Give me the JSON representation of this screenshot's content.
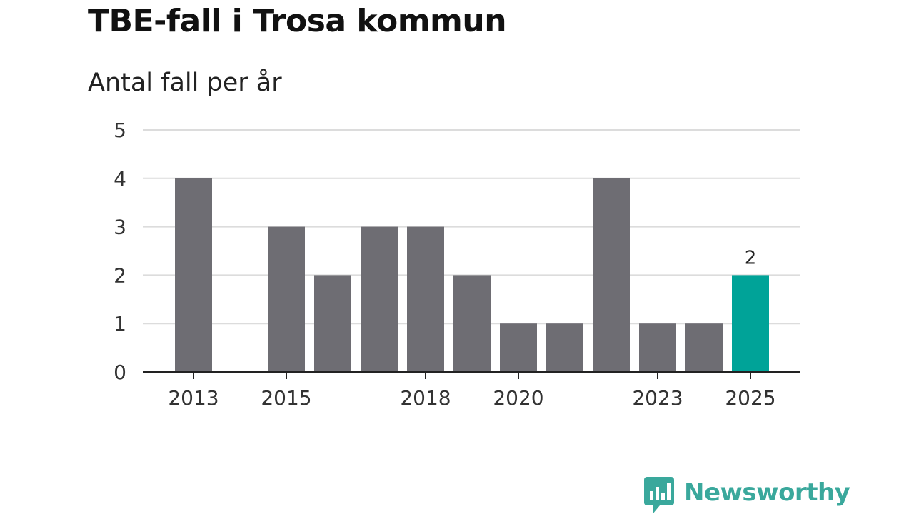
{
  "chart_data": {
    "type": "bar",
    "title": "TBE-fall i Trosa kommun",
    "subtitle": "Antal fall per år",
    "categories": [
      2013,
      2014,
      2015,
      2016,
      2017,
      2018,
      2019,
      2020,
      2021,
      2022,
      2023,
      2024,
      2025
    ],
    "values": [
      4,
      0,
      3,
      2,
      3,
      3,
      2,
      1,
      1,
      4,
      1,
      1,
      2
    ],
    "x_tick_labels": [
      "2013",
      "2015",
      "2018",
      "2020",
      "2023",
      "2025"
    ],
    "y_ticks": [
      0,
      1,
      2,
      3,
      4,
      5
    ],
    "ylim": [
      0,
      5
    ],
    "xlabel": "",
    "ylabel": "",
    "highlight_category": 2025,
    "highlight_label": "2",
    "grid": true,
    "colors": {
      "bar": "#6e6d73",
      "highlight": "#00a398",
      "grid": "#dcdcdc",
      "axis": "#222222"
    }
  },
  "brand": {
    "name": "Newsworthy",
    "icon": "newsworthy-logo-icon",
    "color": "#3aa89c"
  }
}
